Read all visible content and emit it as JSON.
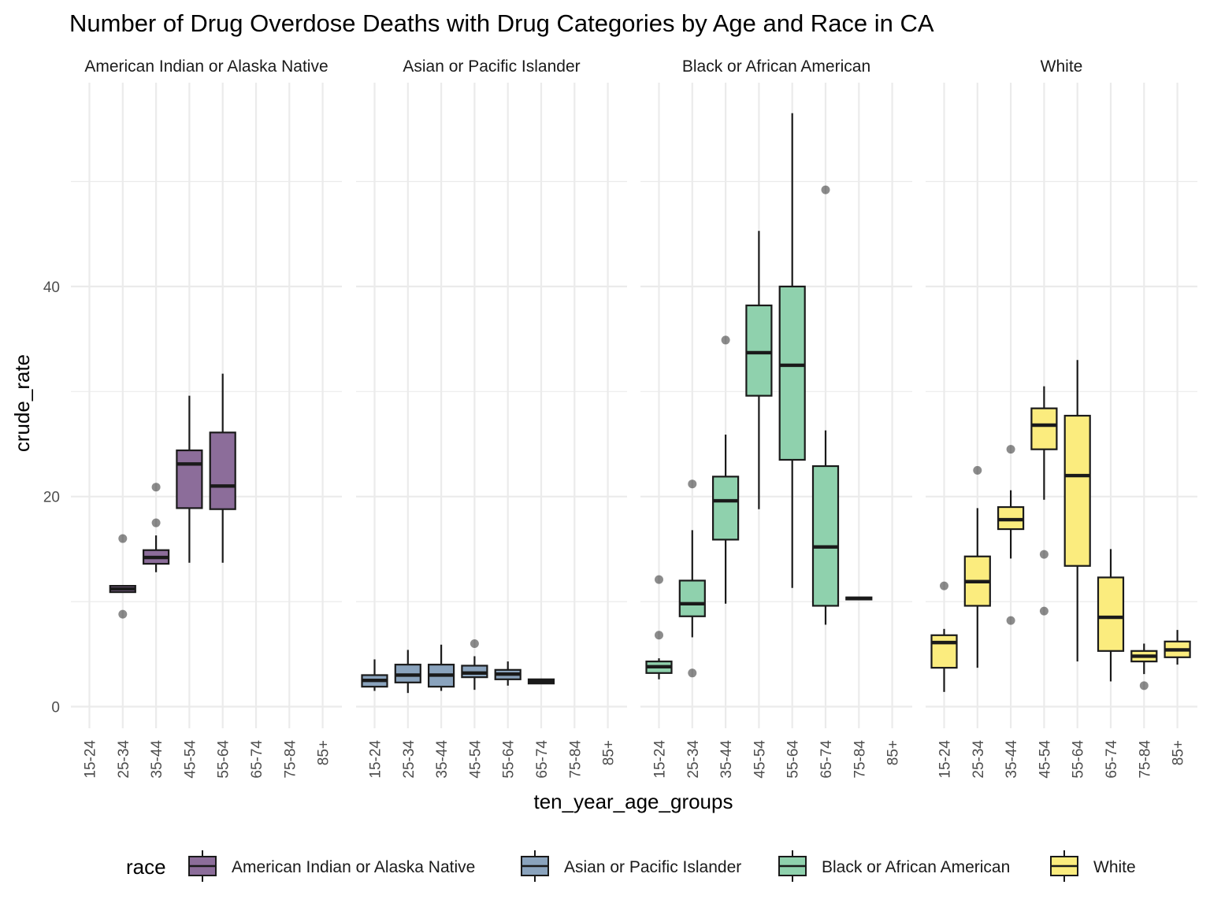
{
  "chart_data": {
    "type": "boxplot",
    "title": "Number of Drug Overdose Deaths with Drug Categories by Age and Race in CA",
    "xlabel": "ten_year_age_groups",
    "ylabel": "crude_rate",
    "ylim": [
      -2,
      58
    ],
    "y_ticks": [
      0,
      20,
      40
    ],
    "categories": [
      "15-24",
      "25-34",
      "35-44",
      "45-54",
      "55-64",
      "65-74",
      "75-84",
      "85+"
    ],
    "grid": true,
    "legend": {
      "title": "race",
      "position": "bottom"
    },
    "facets": [
      {
        "name": "American Indian or Alaska Native",
        "color": "#8c6d9a",
        "boxes": [
          {
            "category": "25-34",
            "q1": 10.9,
            "median": 11.2,
            "q3": 11.5,
            "whisker_low": 10.9,
            "whisker_high": 11.5,
            "outliers": [
              16.0,
              8.8
            ]
          },
          {
            "category": "35-44",
            "q1": 13.6,
            "median": 14.2,
            "q3": 14.9,
            "whisker_low": 12.8,
            "whisker_high": 16.3,
            "outliers": [
              17.5,
              20.9
            ]
          },
          {
            "category": "45-54",
            "q1": 18.9,
            "median": 23.1,
            "q3": 24.4,
            "whisker_low": 13.7,
            "whisker_high": 29.6,
            "outliers": []
          },
          {
            "category": "55-64",
            "q1": 18.8,
            "median": 21.0,
            "q3": 26.1,
            "whisker_low": 13.7,
            "whisker_high": 31.7,
            "outliers": []
          }
        ]
      },
      {
        "name": "Asian or Pacific Islander",
        "color": "#8aa3bd",
        "boxes": [
          {
            "category": "15-24",
            "q1": 1.9,
            "median": 2.5,
            "q3": 3.0,
            "whisker_low": 1.5,
            "whisker_high": 4.5,
            "outliers": []
          },
          {
            "category": "25-34",
            "q1": 2.3,
            "median": 3.0,
            "q3": 4.0,
            "whisker_low": 1.3,
            "whisker_high": 5.4,
            "outliers": []
          },
          {
            "category": "35-44",
            "q1": 1.9,
            "median": 3.0,
            "q3": 4.0,
            "whisker_low": 1.5,
            "whisker_high": 5.9,
            "outliers": []
          },
          {
            "category": "45-54",
            "q1": 2.8,
            "median": 3.2,
            "q3": 3.9,
            "whisker_low": 1.6,
            "whisker_high": 4.8,
            "outliers": [
              6.0
            ]
          },
          {
            "category": "55-64",
            "q1": 2.6,
            "median": 3.1,
            "q3": 3.5,
            "whisker_low": 2.0,
            "whisker_high": 4.3,
            "outliers": []
          },
          {
            "category": "65-74",
            "q1": 2.2,
            "median": 2.4,
            "q3": 2.6,
            "whisker_low": 2.2,
            "whisker_high": 2.6,
            "outliers": []
          }
        ]
      },
      {
        "name": "Black or African American",
        "color": "#8fd1ad",
        "boxes": [
          {
            "category": "15-24",
            "q1": 3.2,
            "median": 3.8,
            "q3": 4.3,
            "whisker_low": 2.6,
            "whisker_high": 4.6,
            "outliers": [
              6.8,
              12.1
            ]
          },
          {
            "category": "25-34",
            "q1": 8.6,
            "median": 9.8,
            "q3": 12.0,
            "whisker_low": 6.6,
            "whisker_high": 16.8,
            "outliers": [
              21.2,
              3.2
            ]
          },
          {
            "category": "35-44",
            "q1": 15.9,
            "median": 19.6,
            "q3": 21.9,
            "whisker_low": 9.8,
            "whisker_high": 25.9,
            "outliers": [
              34.9
            ]
          },
          {
            "category": "45-54",
            "q1": 29.6,
            "median": 33.7,
            "q3": 38.2,
            "whisker_low": 18.8,
            "whisker_high": 45.3,
            "outliers": []
          },
          {
            "category": "55-64",
            "q1": 23.5,
            "median": 32.5,
            "q3": 40.0,
            "whisker_low": 11.3,
            "whisker_high": 56.5,
            "outliers": []
          },
          {
            "category": "65-74",
            "q1": 9.6,
            "median": 15.2,
            "q3": 22.9,
            "whisker_low": 7.8,
            "whisker_high": 26.3,
            "outliers": [
              49.2
            ]
          },
          {
            "category": "75-84",
            "q1": 10.2,
            "median": 10.3,
            "q3": 10.4,
            "whisker_low": 10.2,
            "whisker_high": 10.4,
            "outliers": []
          }
        ]
      },
      {
        "name": "White",
        "color": "#fbec7e",
        "boxes": [
          {
            "category": "15-24",
            "q1": 3.7,
            "median": 6.1,
            "q3": 6.8,
            "whisker_low": 1.4,
            "whisker_high": 7.4,
            "outliers": [
              11.5
            ]
          },
          {
            "category": "25-34",
            "q1": 9.6,
            "median": 11.9,
            "q3": 14.3,
            "whisker_low": 3.7,
            "whisker_high": 18.9,
            "outliers": [
              22.5
            ]
          },
          {
            "category": "35-44",
            "q1": 16.9,
            "median": 17.8,
            "q3": 19.0,
            "whisker_low": 14.1,
            "whisker_high": 20.6,
            "outliers": [
              24.5,
              8.2
            ]
          },
          {
            "category": "45-54",
            "q1": 24.5,
            "median": 26.8,
            "q3": 28.4,
            "whisker_low": 19.7,
            "whisker_high": 30.5,
            "outliers": [
              14.5,
              9.1
            ]
          },
          {
            "category": "55-64",
            "q1": 13.4,
            "median": 22.0,
            "q3": 27.7,
            "whisker_low": 4.3,
            "whisker_high": 33.0,
            "outliers": []
          },
          {
            "category": "65-74",
            "q1": 5.3,
            "median": 8.5,
            "q3": 12.3,
            "whisker_low": 2.4,
            "whisker_high": 15.0,
            "outliers": []
          },
          {
            "category": "75-84",
            "q1": 4.3,
            "median": 4.8,
            "q3": 5.3,
            "whisker_low": 3.1,
            "whisker_high": 6.0,
            "outliers": [
              2.0
            ]
          },
          {
            "category": "85+",
            "q1": 4.7,
            "median": 5.4,
            "q3": 6.2,
            "whisker_low": 4.0,
            "whisker_high": 7.3,
            "outliers": []
          }
        ]
      }
    ]
  }
}
